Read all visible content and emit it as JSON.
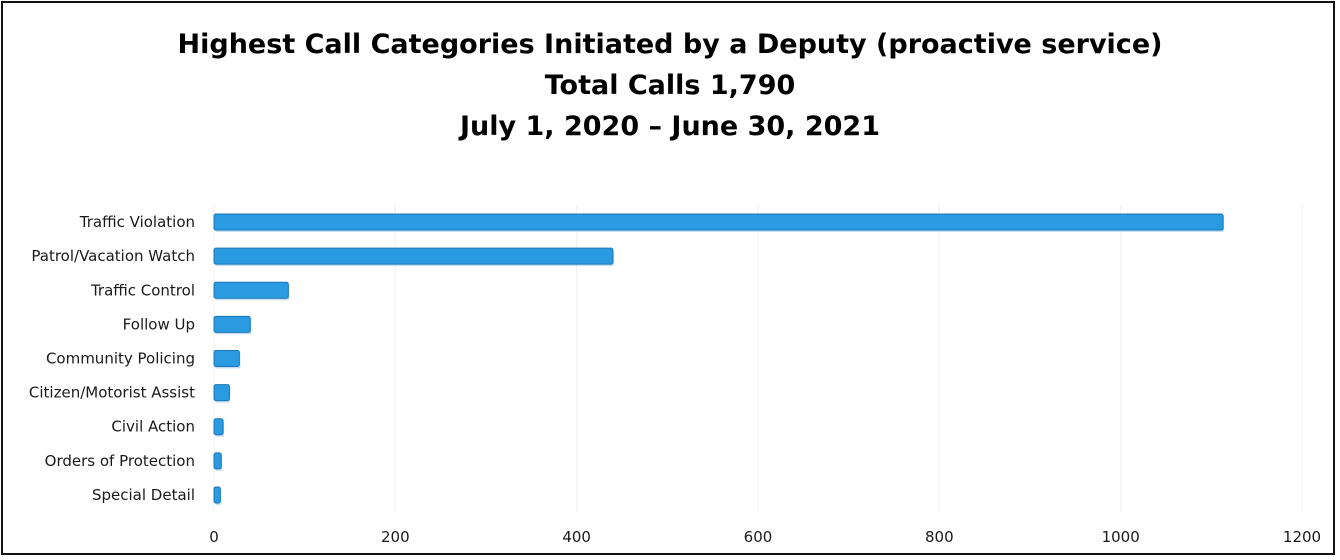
{
  "chart_data": {
    "type": "bar",
    "orientation": "horizontal",
    "title": "Highest Call Categories Initiated by a Deputy (proactive service)",
    "subtitle_lines": [
      "Total Calls 1,790",
      "July 1, 2020 – June 30, 2021"
    ],
    "categories": [
      "Traffic Violation",
      "Patrol/Vacation Watch",
      "Traffic Control",
      "Follow Up",
      "Community Policing",
      "Citizen/Motorist Assist",
      "Civil Action",
      "Orders of Protection",
      "Special Detail"
    ],
    "values": [
      1113,
      440,
      82,
      40,
      28,
      17,
      10,
      8,
      7
    ],
    "xlim": [
      0,
      1200
    ],
    "x_ticks": [
      0,
      200,
      400,
      600,
      800,
      1000,
      1200
    ],
    "xlabel": "",
    "ylabel": "",
    "grid": true,
    "legend": "none",
    "bar_color": "#2a9be0",
    "bar_edge_color": "#1a78b8"
  }
}
